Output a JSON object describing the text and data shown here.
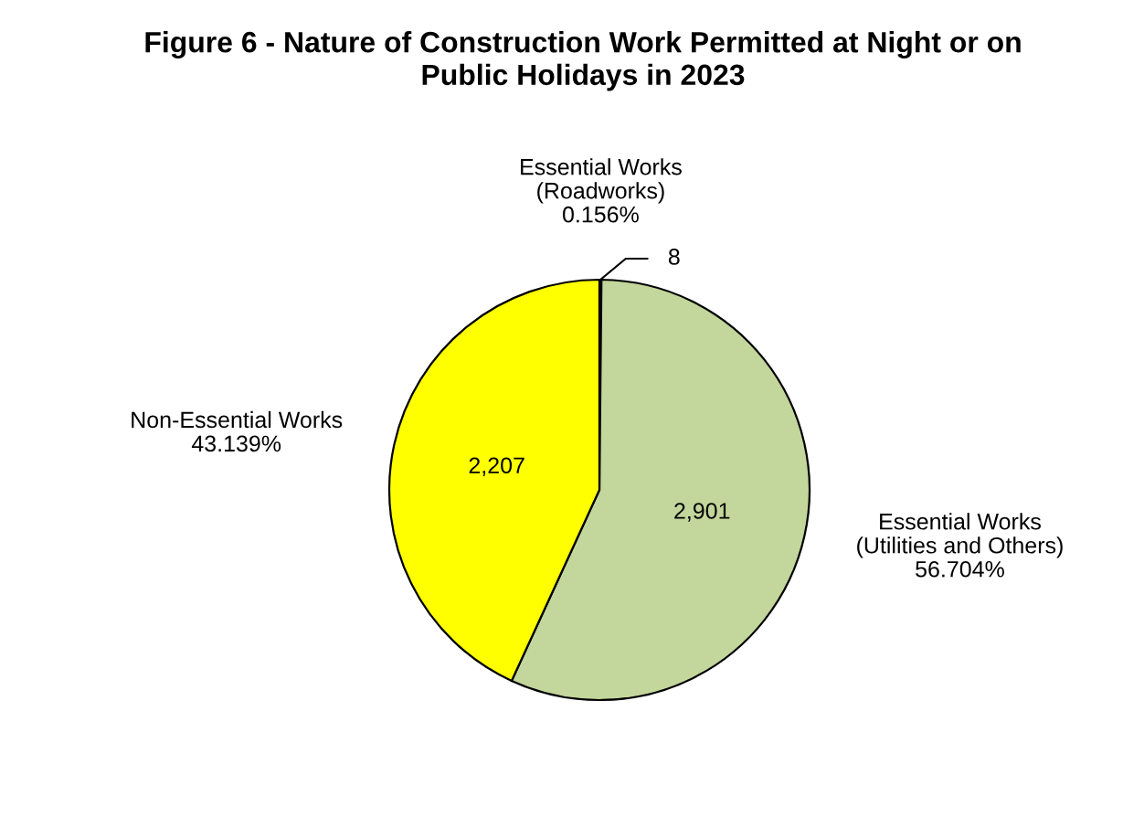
{
  "chart_data": {
    "type": "pie",
    "title": "Figure 6 - Nature of Construction Work Permitted at Night or on\nPublic Holidays in 2023",
    "categories": [
      "Essential Works\n(Roadworks)\n0.156%",
      "Essential Works\n(Utilities and Others)\n56.704%",
      "Non-Essential Works\n43.139%"
    ],
    "values": [
      8,
      2901,
      2207
    ],
    "colors": [
      "#000000",
      "#c3d69b",
      "#ffff00"
    ],
    "value_labels": [
      "8",
      "2,901",
      "2,207"
    ]
  }
}
